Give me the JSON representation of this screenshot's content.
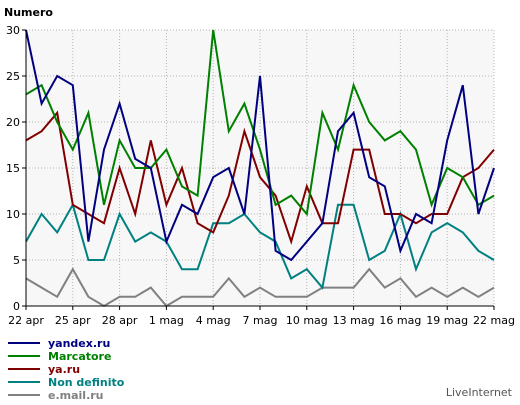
{
  "chart_data": {
    "type": "line",
    "title": "",
    "xlabel": "",
    "ylabel": "Numero",
    "ylim": [
      0,
      30
    ],
    "yticks": [
      0,
      5,
      10,
      15,
      20,
      25,
      30
    ],
    "grid": true,
    "legend_position": "bottom-left",
    "x_count": 31,
    "x_tick_labels": [
      "22 apr",
      "25 apr",
      "28 apr",
      "1 mag",
      "4 mag",
      "7 mag",
      "10 mag",
      "13 mag",
      "16 mag",
      "19 mag",
      "22 mag"
    ],
    "x_tick_every": 3,
    "series": [
      {
        "name": "yandex.ru",
        "color": "#000080",
        "values": [
          30,
          22,
          25,
          24,
          7,
          17,
          22,
          16,
          15,
          7,
          11,
          10,
          14,
          15,
          10,
          25,
          6,
          5,
          7,
          9,
          19,
          21,
          14,
          13,
          6,
          10,
          9,
          18,
          24,
          10,
          15
        ]
      },
      {
        "name": "Marcatore",
        "color": "#008000",
        "values": [
          23,
          24,
          20,
          17,
          21,
          11,
          18,
          15,
          15,
          17,
          13,
          12,
          30,
          19,
          22,
          17,
          11,
          12,
          10,
          21,
          17,
          24,
          20,
          18,
          19,
          17,
          11,
          15,
          14,
          11,
          12
        ]
      },
      {
        "name": "ya.ru",
        "color": "#800000",
        "values": [
          18,
          19,
          21,
          11,
          10,
          9,
          15,
          10,
          18,
          11,
          15,
          9,
          8,
          12,
          19,
          14,
          12,
          7,
          13,
          9,
          9,
          17,
          17,
          10,
          10,
          9,
          10,
          10,
          14,
          15,
          17
        ]
      },
      {
        "name": "Non definito",
        "color": "#008080",
        "values": [
          7,
          10,
          8,
          11,
          5,
          5,
          10,
          7,
          8,
          7,
          4,
          4,
          9,
          9,
          10,
          8,
          7,
          3,
          4,
          2,
          11,
          11,
          5,
          6,
          10,
          4,
          8,
          9,
          8,
          6,
          5
        ]
      },
      {
        "name": "e.mail.ru",
        "color": "#808080",
        "values": [
          3,
          2,
          1,
          4,
          1,
          0,
          1,
          1,
          2,
          0,
          1,
          1,
          1,
          3,
          1,
          2,
          1,
          1,
          1,
          2,
          2,
          2,
          4,
          2,
          3,
          1,
          2,
          1,
          2,
          1,
          2
        ]
      }
    ]
  },
  "credit": "LiveInternet"
}
